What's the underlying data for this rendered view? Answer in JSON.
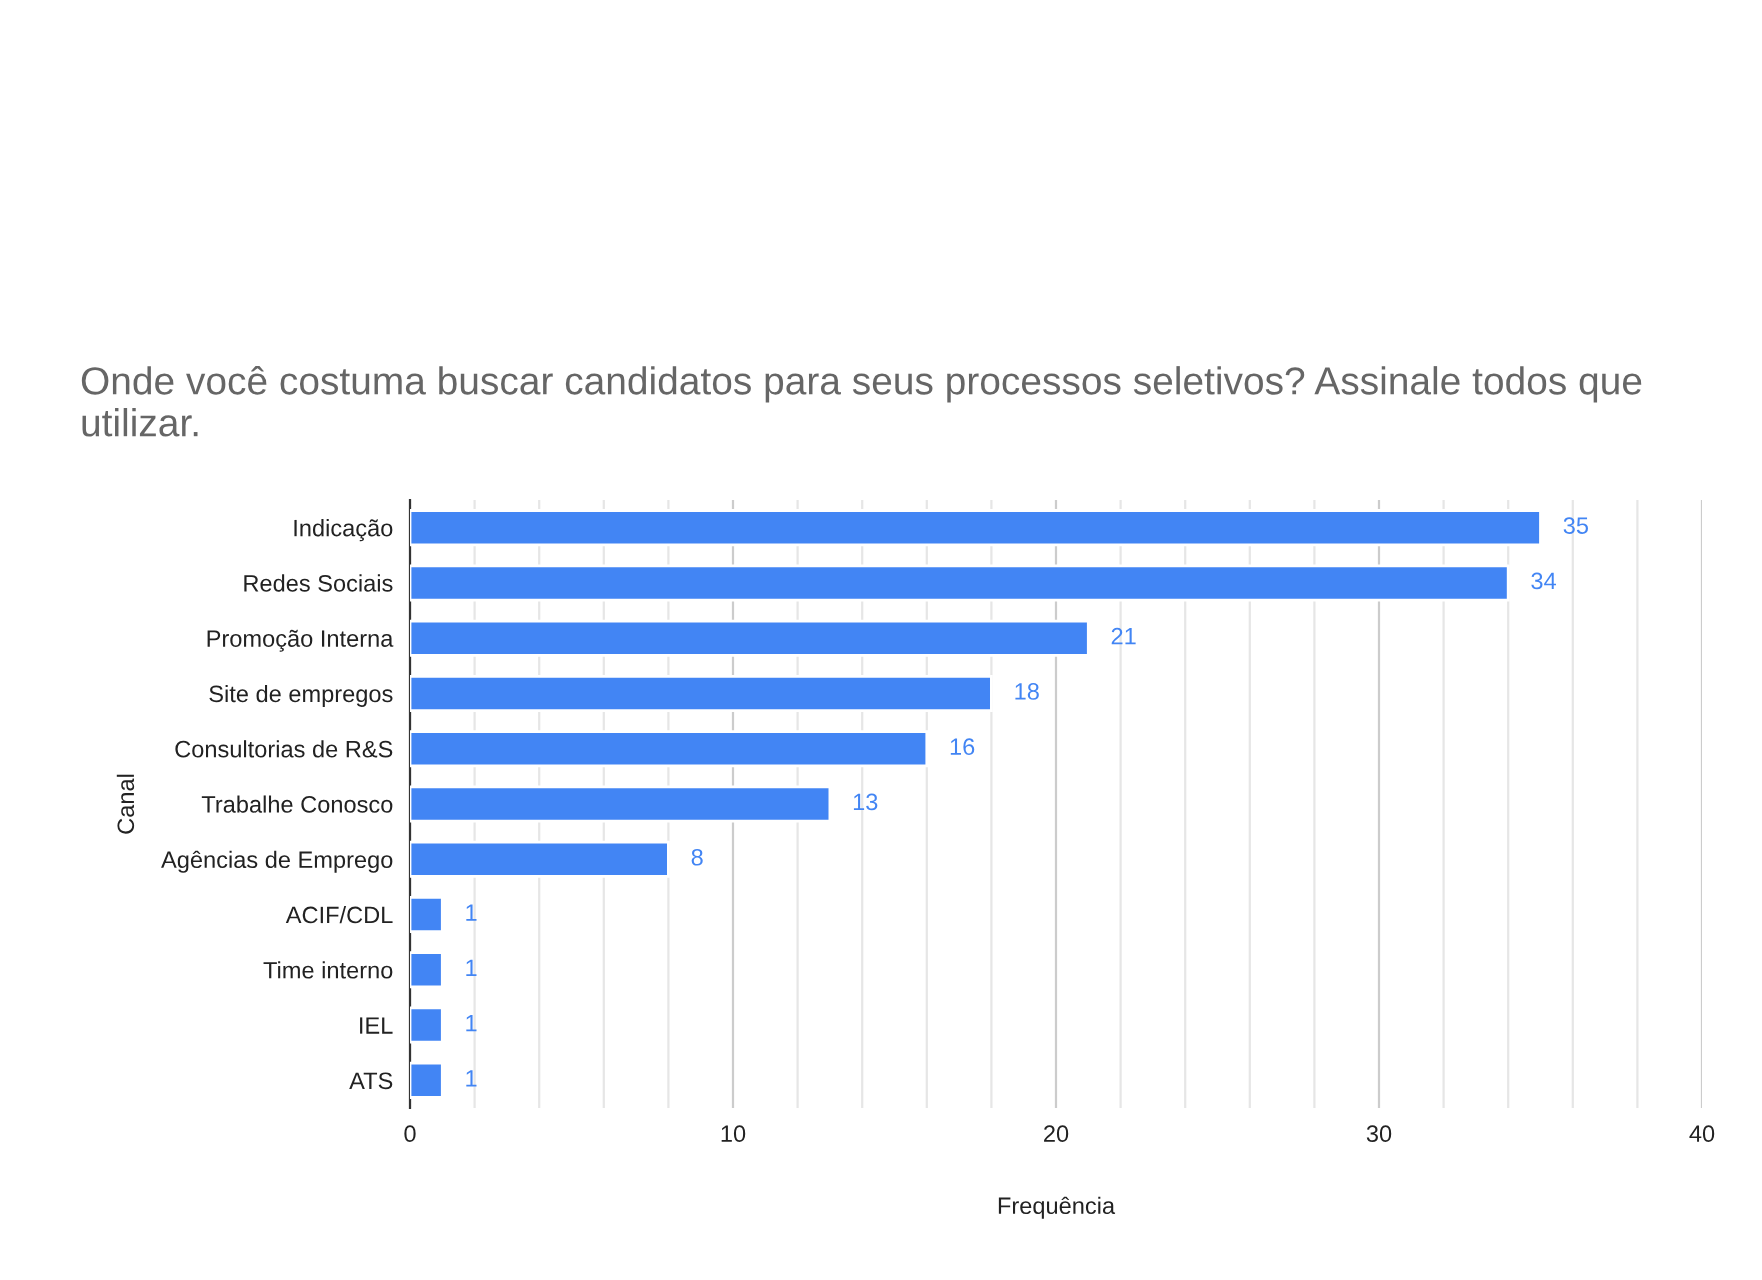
{
  "chart_data": {
    "type": "bar",
    "orientation": "horizontal",
    "title": "Onde você costuma buscar candidatos para seus processos seletivos? Assinale todos que utilizar.",
    "xlabel": "Frequência",
    "ylabel": "Canal",
    "categories": [
      "Indicação",
      "Redes Sociais",
      "Promoção Interna",
      "Site de empregos",
      "Consultorias de R&S",
      "Trabalhe Conosco",
      "Agências de Emprego",
      "ACIF/CDL",
      "Time interno",
      "IEL",
      "ATS"
    ],
    "values": [
      35,
      34,
      21,
      18,
      16,
      13,
      8,
      1,
      1,
      1,
      1
    ],
    "color": "#4285f4",
    "data_labels": true,
    "xlim": [
      0,
      40
    ],
    "xticks": [
      0,
      {
        "value": 2,
        "label": null
      },
      {
        "value": 4,
        "label": null
      },
      {
        "value": 6,
        "label": null
      },
      {
        "value": 8,
        "label": null
      },
      10,
      {
        "value": 12,
        "label": null
      },
      {
        "value": 14,
        "label": null
      },
      {
        "value": 16,
        "label": null
      },
      {
        "value": 18,
        "label": null
      },
      20,
      {
        "value": 22,
        "label": null
      },
      {
        "value": 24,
        "label": null
      },
      {
        "value": 26,
        "label": null
      },
      {
        "value": 28,
        "label": null
      },
      30,
      {
        "value": 32,
        "label": null
      },
      {
        "value": 34,
        "label": null
      },
      {
        "value": 36,
        "label": null
      },
      {
        "value": 38,
        "label": null
      },
      40
    ],
    "grid": "x"
  }
}
